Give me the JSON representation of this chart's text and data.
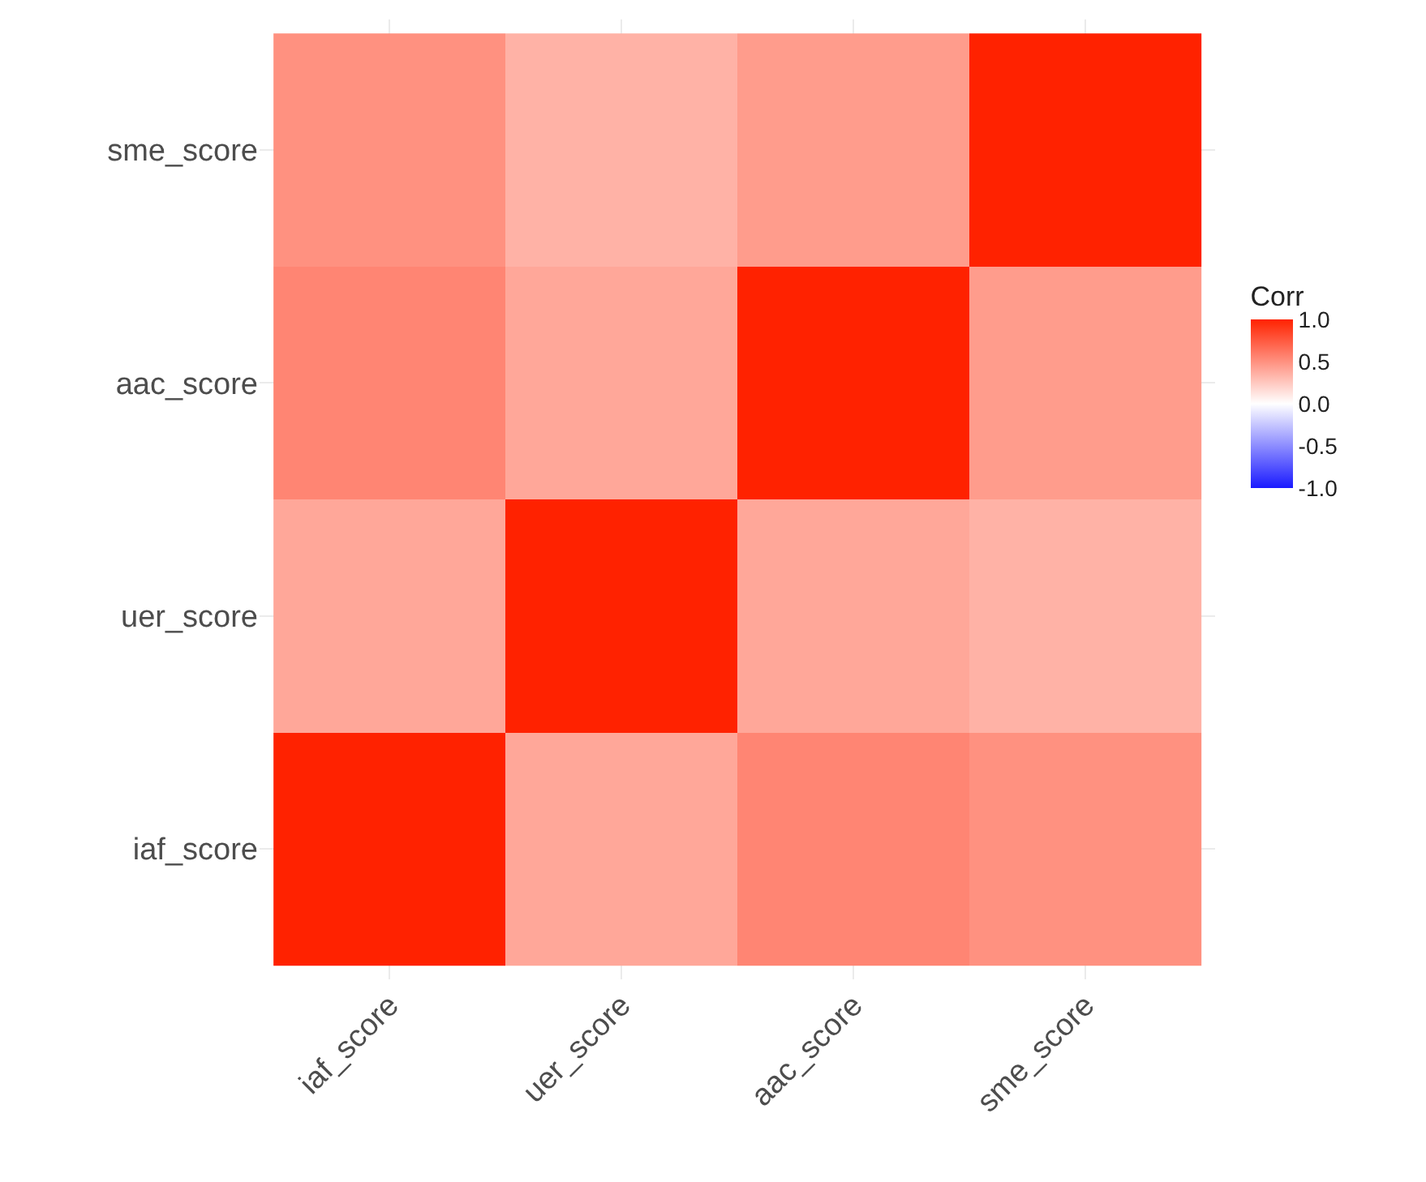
{
  "chart_data": {
    "type": "heatmap",
    "categories": [
      "iaf_score",
      "uer_score",
      "aac_score",
      "sme_score"
    ],
    "y_categories": [
      "sme_score",
      "aac_score",
      "uer_score",
      "iaf_score"
    ],
    "cells": [
      [
        0.5,
        0.35,
        0.45,
        1
      ],
      [
        0.55,
        0.4,
        1,
        0.45
      ],
      [
        0.4,
        1,
        0.4,
        0.35
      ],
      [
        1,
        0.4,
        0.55,
        0.5
      ]
    ],
    "clabel": "Corr",
    "clim": [
      -1,
      1
    ],
    "cticks": [
      {
        "value": 1,
        "label": "1.0"
      },
      0.5,
      {
        "value": 0,
        "label": "0.0"
      },
      -0.5,
      {
        "value": -1,
        "label": "-1.0"
      }
    ],
    "grid": true
  }
}
